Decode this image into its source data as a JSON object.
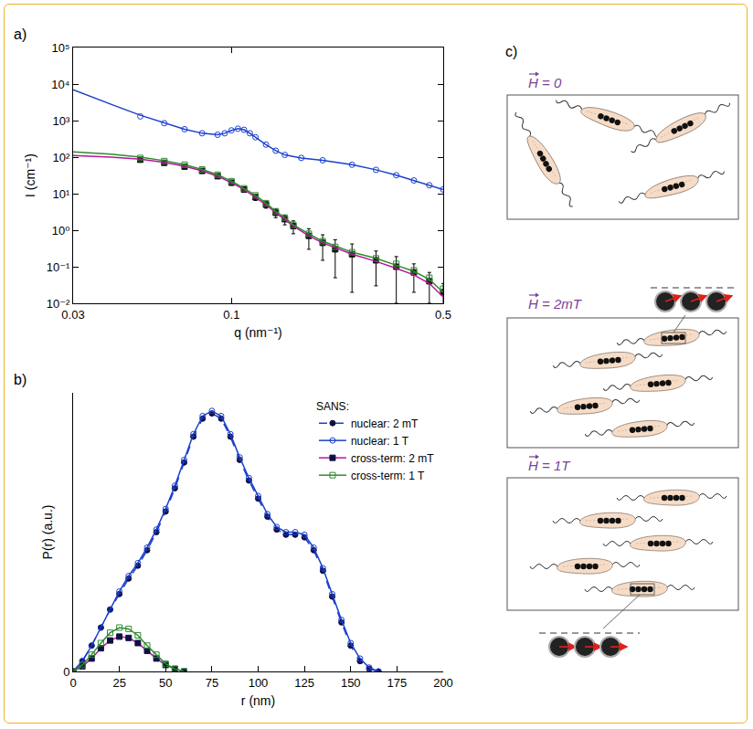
{
  "chart_data": [
    {
      "type": "scatter",
      "title": "a)",
      "x_label": "q (nm⁻¹)",
      "y_label": "I (cm⁻¹)",
      "log": true,
      "grid": false,
      "xlim": [
        0.03,
        0.5
      ],
      "ylim": [
        0.01,
        100000
      ],
      "xticks": [
        0.03,
        0.1,
        0.5
      ],
      "yticks": [
        {
          "value": 0.01,
          "label": "10⁻²"
        },
        {
          "value": 0.1,
          "label": "10⁻¹"
        },
        {
          "value": 1,
          "label": "10⁰"
        },
        {
          "value": 10,
          "label": "10¹"
        },
        {
          "value": 100,
          "label": "10²"
        },
        {
          "value": 1000,
          "label": "10³"
        },
        {
          "value": 10000,
          "label": "10⁴"
        },
        {
          "value": 100000,
          "label": "10⁵"
        }
      ],
      "series": [
        {
          "type": "scatter",
          "color": "#1a3fcf",
          "marker": "circle_open",
          "x": [
            0.05,
            0.06,
            0.07,
            0.08,
            0.09,
            0.095,
            0.1,
            0.105,
            0.11,
            0.115,
            0.12,
            0.13,
            0.14,
            0.15,
            0.17,
            0.2,
            0.25,
            0.3,
            0.35,
            0.4,
            0.45,
            0.5
          ],
          "values": [
            1300,
            850,
            580,
            450,
            410,
            450,
            540,
            600,
            560,
            450,
            350,
            220,
            150,
            115,
            95,
            82,
            62,
            45,
            32,
            23,
            17,
            13
          ]
        },
        {
          "type": "line",
          "color": "#1a3fcf",
          "line_style": "solid",
          "x": [
            0.03,
            0.035,
            0.04,
            0.05,
            0.06,
            0.07,
            0.08,
            0.09,
            0.095,
            0.1,
            0.105,
            0.11,
            0.115,
            0.12,
            0.13,
            0.14,
            0.15,
            0.17,
            0.2,
            0.25,
            0.3,
            0.35,
            0.4,
            0.45,
            0.5
          ],
          "values": [
            7000,
            4200,
            2800,
            1400,
            850,
            580,
            450,
            410,
            450,
            540,
            600,
            560,
            450,
            350,
            220,
            150,
            115,
            95,
            82,
            62,
            45,
            32,
            23,
            17,
            13
          ]
        },
        {
          "type": "scatter",
          "color": "#111111",
          "marker": "square",
          "x": [
            0.05,
            0.06,
            0.07,
            0.08,
            0.09,
            0.1,
            0.11,
            0.12,
            0.13,
            0.14,
            0.15,
            0.16,
            0.18,
            0.2,
            0.22,
            0.25,
            0.3,
            0.35,
            0.4,
            0.45,
            0.5
          ],
          "values": [
            85,
            70,
            55,
            42,
            30,
            20,
            13,
            8,
            5,
            3,
            2,
            1.3,
            0.7,
            0.45,
            0.3,
            0.22,
            0.15,
            0.1,
            0.07,
            0.04,
            0.02
          ],
          "error": [
            10,
            8,
            7,
            5,
            4,
            3,
            2,
            1.5,
            1,
            0.8,
            0.6,
            0.5,
            0.4,
            0.3,
            0.25,
            0.2,
            0.12,
            0.09,
            0.05,
            0.03,
            0.015
          ]
        },
        {
          "type": "scatter",
          "color": "#2e8b2e",
          "marker": "square_open",
          "x": [
            0.05,
            0.06,
            0.07,
            0.08,
            0.09,
            0.1,
            0.11,
            0.12,
            0.13,
            0.14,
            0.15,
            0.16,
            0.18,
            0.2,
            0.22,
            0.25,
            0.3,
            0.35,
            0.4,
            0.45,
            0.5
          ],
          "values": [
            95,
            78,
            62,
            46,
            33,
            22,
            14,
            9,
            5.5,
            3.3,
            2.2,
            1.4,
            0.8,
            0.5,
            0.35,
            0.25,
            0.17,
            0.12,
            0.08,
            0.05,
            0.025
          ]
        },
        {
          "type": "line",
          "color": "#b5179e",
          "line_style": "solid",
          "x": [
            0.03,
            0.04,
            0.05,
            0.06,
            0.07,
            0.08,
            0.09,
            0.1,
            0.11,
            0.12,
            0.13,
            0.14,
            0.15,
            0.16,
            0.18,
            0.2,
            0.25,
            0.3,
            0.35,
            0.4,
            0.45,
            0.5
          ],
          "values": [
            110,
            100,
            88,
            72,
            56,
            42,
            30,
            20,
            13,
            8,
            5,
            3,
            2,
            1.3,
            0.7,
            0.45,
            0.22,
            0.14,
            0.09,
            0.06,
            0.035,
            0.015
          ]
        },
        {
          "type": "line",
          "color": "#2e8b2e",
          "line_style": "solid",
          "x": [
            0.03,
            0.04,
            0.05,
            0.06,
            0.07,
            0.08,
            0.09,
            0.1,
            0.11,
            0.12,
            0.13,
            0.14,
            0.15,
            0.16,
            0.18,
            0.2,
            0.25,
            0.3,
            0.35,
            0.4,
            0.45,
            0.5
          ],
          "values": [
            140,
            120,
            100,
            80,
            62,
            46,
            33,
            22,
            14,
            9,
            5.5,
            3.3,
            2.2,
            1.4,
            0.8,
            0.5,
            0.25,
            0.17,
            0.11,
            0.075,
            0.045,
            0.02
          ]
        }
      ]
    },
    {
      "type": "line",
      "title": "b)",
      "x_label": "r (nm)",
      "y_label": "P(r) (a.u.)",
      "legend_title": "SANS:",
      "legend": "upper right",
      "grid": false,
      "xlim": [
        0,
        200
      ],
      "ylim": [
        0,
        1.08
      ],
      "xticks": [
        0,
        25,
        50,
        75,
        100,
        125,
        150,
        175,
        200
      ],
      "yticks": [
        0
      ],
      "series": [
        {
          "name": "nuclear: 2 mT",
          "color": "#1a3fcf",
          "marker": "circle",
          "line_style": "dashed",
          "x": [
            0,
            5,
            10,
            15,
            20,
            25,
            30,
            35,
            40,
            45,
            50,
            55,
            60,
            65,
            70,
            75,
            80,
            85,
            90,
            95,
            100,
            105,
            110,
            115,
            120,
            125,
            130,
            135,
            140,
            145,
            150,
            155,
            160,
            165
          ],
          "values": [
            0,
            0.04,
            0.1,
            0.17,
            0.24,
            0.3,
            0.36,
            0.41,
            0.47,
            0.54,
            0.62,
            0.71,
            0.81,
            0.91,
            0.98,
            1.0,
            0.98,
            0.91,
            0.82,
            0.74,
            0.67,
            0.6,
            0.55,
            0.53,
            0.53,
            0.52,
            0.47,
            0.39,
            0.29,
            0.19,
            0.1,
            0.04,
            0.01,
            0
          ]
        },
        {
          "name": "nuclear: 1 T",
          "color": "#1a3fcf",
          "marker": "circle_open",
          "line_style": "solid",
          "x": [
            0,
            5,
            10,
            15,
            20,
            25,
            30,
            35,
            40,
            45,
            50,
            55,
            60,
            65,
            70,
            75,
            80,
            85,
            90,
            95,
            100,
            105,
            110,
            115,
            120,
            125,
            130,
            135,
            140,
            145,
            150,
            155,
            160,
            165
          ],
          "values": [
            0,
            0.04,
            0.1,
            0.17,
            0.24,
            0.31,
            0.37,
            0.42,
            0.48,
            0.55,
            0.63,
            0.72,
            0.82,
            0.92,
            0.99,
            1.01,
            0.99,
            0.92,
            0.83,
            0.75,
            0.68,
            0.61,
            0.56,
            0.54,
            0.54,
            0.53,
            0.48,
            0.4,
            0.3,
            0.2,
            0.11,
            0.05,
            0.015,
            0
          ]
        },
        {
          "name": "cross-term: 2 mT",
          "color": "#b5179e",
          "marker": "square",
          "line_style": "solid",
          "x": [
            0,
            5,
            10,
            15,
            20,
            25,
            30,
            35,
            40,
            45,
            50,
            55,
            60
          ],
          "values": [
            0,
            0.02,
            0.05,
            0.09,
            0.12,
            0.135,
            0.13,
            0.11,
            0.08,
            0.05,
            0.025,
            0.01,
            0
          ]
        },
        {
          "name": "cross-term: 1 T",
          "color": "#2e8b2e",
          "marker": "square_open",
          "line_style": "solid",
          "x": [
            0,
            5,
            10,
            15,
            20,
            25,
            30,
            35,
            40,
            45,
            50,
            55,
            60
          ],
          "values": [
            0,
            0.025,
            0.065,
            0.11,
            0.15,
            0.17,
            0.165,
            0.14,
            0.1,
            0.065,
            0.03,
            0.01,
            0
          ]
        }
      ]
    }
  ],
  "diagram": {
    "title": "c)",
    "panels": [
      {
        "label": "H = 0"
      },
      {
        "label": "H = 2mT"
      },
      {
        "label": "H = 1T"
      }
    ]
  }
}
